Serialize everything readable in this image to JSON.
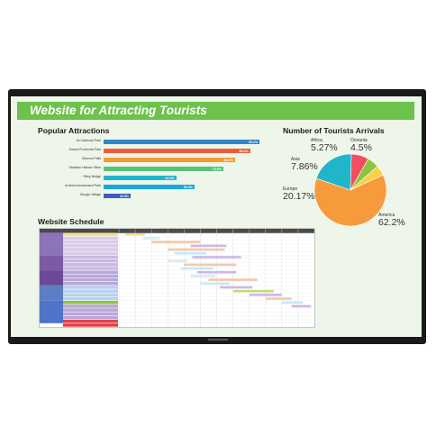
{
  "screen": {
    "title": "Website for Attracting Tourists",
    "popular": {
      "heading": "Popular Attractions",
      "items": [
        {
          "name": "Gn National Park",
          "value": "95.2%",
          "fraction": 0.952,
          "color": "#2f86c6"
        },
        {
          "name": "Emma Provincial Park",
          "value": "89.4%",
          "fraction": 0.894,
          "color": "#ef5c3a"
        },
        {
          "name": "Ginevra Falls",
          "value": "80.1%",
          "fraction": 0.801,
          "color": "#f39b2e"
        },
        {
          "name": "Madden Historic Sites",
          "value": "73.0%",
          "fraction": 0.73,
          "color": "#59c07a"
        },
        {
          "name": "Riley Bridge",
          "value": "44.3%",
          "fraction": 0.443,
          "color": "#1fb6d0"
        },
        {
          "name": "Andrea Amusement Park",
          "value": "55.5%",
          "fraction": 0.555,
          "color": "#1aa7d9"
        },
        {
          "name": "Giorgio Village",
          "value": "16.5%",
          "fraction": 0.165,
          "color": "#3b5fbd"
        }
      ]
    },
    "arrivals": {
      "heading": "Number of Tourists Arrivals",
      "slices": [
        {
          "name": "America",
          "pct": "62.2%",
          "value": 62.2,
          "color": "#f79a3c"
        },
        {
          "name": "Europe",
          "pct": "20.17%",
          "value": 20.17,
          "color": "#1fb6c9"
        },
        {
          "name": "Asia",
          "pct": "7.86%",
          "value": 7.86,
          "color": "#ef4f5f"
        },
        {
          "name": "Africa",
          "pct": "5.27%",
          "value": 5.27,
          "color": "#8cc63f"
        },
        {
          "name": "Oceania",
          "pct": "4.5%",
          "value": 4.5,
          "color": "#f7d046"
        }
      ]
    },
    "schedule": {
      "heading": "Website Schedule"
    }
  }
}
